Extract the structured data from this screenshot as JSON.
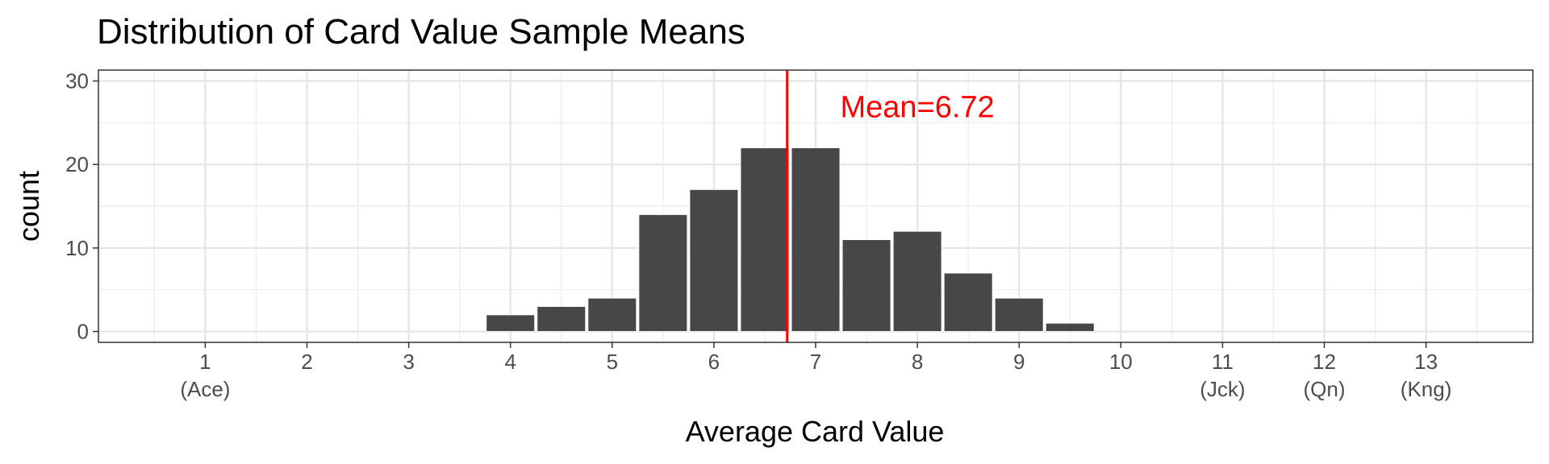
{
  "chart_data": {
    "type": "bar",
    "title": "Distribution of Card Value Sample Means",
    "xlabel": "Average Card Value",
    "ylabel": "count",
    "xlim": [
      -0.05,
      14.05
    ],
    "ylim": [
      -1.3,
      31.3
    ],
    "bin_width": 0.5,
    "bins": [
      {
        "center": 4.0,
        "count": 2
      },
      {
        "center": 4.5,
        "count": 3
      },
      {
        "center": 5.0,
        "count": 4
      },
      {
        "center": 5.5,
        "count": 14
      },
      {
        "center": 6.0,
        "count": 17
      },
      {
        "center": 6.5,
        "count": 22
      },
      {
        "center": 7.0,
        "count": 22
      },
      {
        "center": 7.5,
        "count": 11
      },
      {
        "center": 8.0,
        "count": 12
      },
      {
        "center": 8.5,
        "count": 7
      },
      {
        "center": 9.0,
        "count": 4
      },
      {
        "center": 9.5,
        "count": 1
      }
    ],
    "x_ticks": [
      {
        "value": 1,
        "label": "1",
        "sublabel": "(Ace)"
      },
      {
        "value": 2,
        "label": "2",
        "sublabel": ""
      },
      {
        "value": 3,
        "label": "3",
        "sublabel": ""
      },
      {
        "value": 4,
        "label": "4",
        "sublabel": ""
      },
      {
        "value": 5,
        "label": "5",
        "sublabel": ""
      },
      {
        "value": 6,
        "label": "6",
        "sublabel": ""
      },
      {
        "value": 7,
        "label": "7",
        "sublabel": ""
      },
      {
        "value": 8,
        "label": "8",
        "sublabel": ""
      },
      {
        "value": 9,
        "label": "9",
        "sublabel": ""
      },
      {
        "value": 10,
        "label": "10",
        "sublabel": ""
      },
      {
        "value": 11,
        "label": "11",
        "sublabel": "(Jck)"
      },
      {
        "value": 12,
        "label": "12",
        "sublabel": "(Qn)"
      },
      {
        "value": 13,
        "label": "13",
        "sublabel": "(Kng)"
      }
    ],
    "y_ticks": [
      0,
      10,
      20,
      30
    ],
    "mean": {
      "value": 6.72,
      "label": "Mean=6.72",
      "label_x": 8.0,
      "label_y": 27,
      "color": "#ff0000"
    },
    "bar_color": "#474747",
    "grid": true,
    "legend": "none"
  }
}
